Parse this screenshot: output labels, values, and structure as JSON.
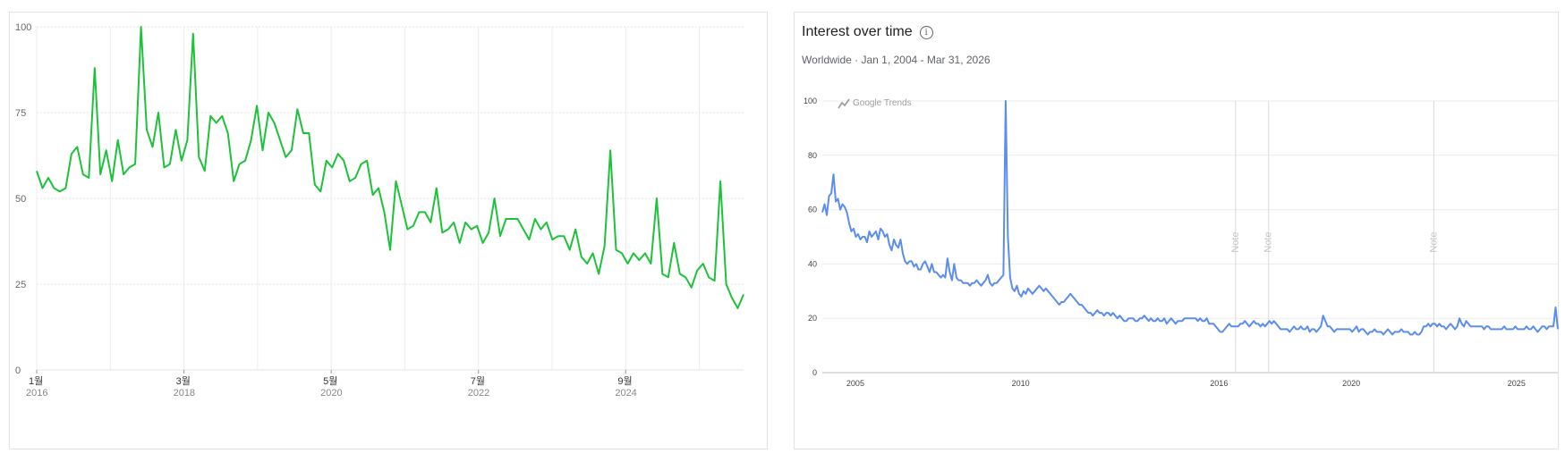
{
  "chart_data": [
    {
      "type": "line",
      "color": "#1ec23a",
      "ylim": [
        0,
        100
      ],
      "yticks": [
        "0",
        "25",
        "50",
        "75",
        "100"
      ],
      "x_start": 2016.0,
      "x_end": 2025.6,
      "xticks": [
        {
          "x": 2016,
          "label": "1월",
          "sublabel": "2016"
        },
        {
          "x": 2018,
          "label": "3월",
          "sublabel": "2018"
        },
        {
          "x": 2020,
          "label": "5월",
          "sublabel": "2020"
        },
        {
          "x": 2022,
          "label": "7월",
          "sublabel": "2022"
        },
        {
          "x": 2024,
          "label": "9월",
          "sublabel": "2024"
        }
      ],
      "series": [
        {
          "values": [
            58,
            53,
            56,
            53,
            52,
            53,
            63,
            65,
            57,
            56,
            88,
            57,
            64,
            55,
            67,
            57,
            59,
            60,
            100,
            70,
            65,
            75,
            59,
            60,
            70,
            61,
            67,
            98,
            62,
            58,
            74,
            72,
            74,
            69,
            55,
            60,
            61,
            67,
            77,
            64,
            75,
            72,
            67,
            62,
            64,
            76,
            69,
            69,
            54,
            52,
            61,
            59,
            63,
            61,
            55,
            56,
            60,
            61,
            51,
            53,
            46,
            35,
            55,
            48,
            41,
            42,
            46,
            46,
            43,
            53,
            40,
            41,
            43,
            37,
            43,
            41,
            42,
            37,
            40,
            50,
            39,
            44,
            44,
            44,
            41,
            38,
            44,
            41,
            43,
            38,
            39,
            39,
            35,
            41,
            33,
            31,
            34,
            28,
            36,
            64,
            35,
            34,
            31,
            34,
            32,
            34,
            31,
            50,
            28,
            27,
            37,
            28,
            27,
            24,
            29,
            31,
            27,
            26,
            55,
            25,
            21,
            18,
            22
          ]
        }
      ]
    },
    {
      "type": "line",
      "title": "Interest over time",
      "subtitle": "Worldwide · Jan 1, 2004 - Mar 31, 2026",
      "watermark": "Google Trends",
      "color": "#5b8def",
      "ylim": [
        0,
        100
      ],
      "yticks": [
        "0",
        "20",
        "40",
        "60",
        "80",
        "100"
      ],
      "x_start": 2004.0,
      "x_end": 2026.25,
      "xticks": [
        {
          "x": 2005,
          "label": "2005"
        },
        {
          "x": 2010,
          "label": "2010"
        },
        {
          "x": 2016,
          "label": "2016"
        },
        {
          "x": 2020,
          "label": "2020"
        },
        {
          "x": 2025,
          "label": "2025"
        }
      ],
      "notes": [
        {
          "x": 2016.5,
          "label": "Note"
        },
        {
          "x": 2017.5,
          "label": "Note"
        },
        {
          "x": 2022.5,
          "label": "Note"
        }
      ],
      "series": [
        {
          "values": [
            59,
            62,
            58,
            65,
            66,
            73,
            63,
            64,
            60,
            62,
            61,
            59,
            55,
            52,
            53,
            50,
            51,
            49,
            50,
            50,
            48,
            52,
            50,
            51,
            52,
            49,
            53,
            52,
            50,
            51,
            47,
            45,
            49,
            47,
            46,
            49,
            44,
            41,
            40,
            41,
            41,
            39,
            40,
            38,
            38,
            40,
            41,
            39,
            37,
            40,
            37,
            37,
            36,
            35,
            36,
            35,
            42,
            37,
            34,
            40,
            35,
            34,
            34,
            33,
            33,
            33,
            32,
            33,
            33,
            34,
            33,
            32,
            33,
            34,
            36,
            33,
            32,
            33,
            33,
            34,
            35,
            36,
            100,
            50,
            35,
            31,
            30,
            32,
            29,
            28,
            30,
            29,
            31,
            30,
            29,
            30,
            31,
            32,
            31,
            30,
            31,
            30,
            29,
            28,
            27,
            26,
            25,
            26,
            26,
            27,
            28,
            29,
            28,
            27,
            26,
            25,
            25,
            24,
            23,
            22,
            22,
            21,
            22,
            23,
            22,
            22,
            21,
            22,
            22,
            21,
            22,
            21,
            20,
            21,
            20,
            19,
            19,
            20,
            20,
            20,
            19,
            19,
            20,
            20,
            21,
            20,
            19,
            20,
            19,
            19,
            20,
            19,
            19,
            20,
            18,
            19,
            20,
            19,
            18,
            19,
            19,
            19,
            20,
            20,
            20,
            20,
            20,
            20,
            19,
            20,
            19,
            19,
            20,
            18,
            18,
            18,
            17,
            16,
            15,
            15,
            16,
            17,
            18,
            17,
            17,
            17,
            17,
            18,
            18,
            19,
            18,
            17,
            18,
            19,
            18,
            18,
            17,
            18,
            17,
            18,
            19,
            18,
            19,
            18,
            17,
            16,
            16,
            16,
            16,
            15,
            16,
            17,
            16,
            16,
            17,
            16,
            16,
            17,
            15,
            16,
            16,
            15,
            16,
            17,
            21,
            19,
            17,
            17,
            16,
            15,
            16,
            16,
            16,
            16,
            16,
            16,
            16,
            15,
            16,
            17,
            15,
            16,
            16,
            15,
            14,
            15,
            15,
            16,
            15,
            15,
            15,
            14,
            15,
            16,
            15,
            14,
            15,
            15,
            15,
            16,
            15,
            15,
            15,
            14,
            14,
            15,
            14,
            14,
            15,
            17,
            17,
            18,
            17,
            18,
            18,
            17,
            18,
            17,
            17,
            16,
            17,
            18,
            17,
            16,
            17,
            20,
            18,
            17,
            19,
            18,
            17,
            17,
            17,
            17,
            17,
            17,
            16,
            17,
            17,
            16,
            16,
            16,
            16,
            16,
            16,
            17,
            16,
            16,
            16,
            16,
            17,
            16,
            16,
            16,
            16,
            17,
            16,
            16,
            17,
            16,
            15,
            16,
            17,
            17,
            16,
            17,
            17,
            17,
            24,
            16
          ]
        }
      ]
    }
  ]
}
